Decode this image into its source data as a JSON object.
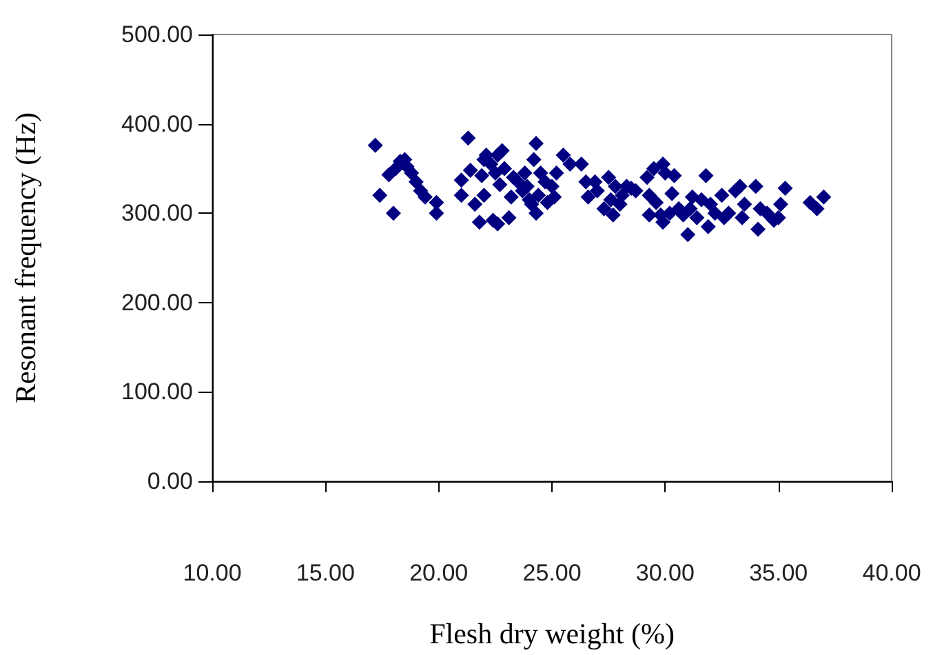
{
  "chart_data": {
    "type": "scatter",
    "xlabel": "Flesh dry weight (%)",
    "ylabel": "Resonant frequency (Hz)",
    "xlim": [
      10,
      40
    ],
    "xticks": [
      {
        "value": 10,
        "label": "10.00"
      },
      {
        "value": 15,
        "label": "15.00"
      },
      {
        "value": 20,
        "label": "20.00"
      },
      {
        "value": 25,
        "label": "25.00"
      },
      {
        "value": 30,
        "label": "30.00"
      },
      {
        "value": 35,
        "label": "35.00"
      },
      {
        "value": 40,
        "label": "40.00"
      }
    ],
    "ylim": [
      0,
      500
    ],
    "yticks": [
      {
        "value": 0,
        "label": "0.00"
      },
      {
        "value": 100,
        "label": "100.00"
      },
      {
        "value": 200,
        "label": "200.00"
      },
      {
        "value": 300,
        "label": "300.00"
      },
      {
        "value": 400,
        "label": "400.00"
      },
      {
        "value": 500,
        "label": "500.00"
      }
    ],
    "grid": false,
    "marker": "diamond",
    "series": [
      {
        "color": "#000080",
        "x": [
          17.2,
          17.4,
          17.8,
          18.0,
          18.1,
          18.3,
          18.5,
          18.6,
          18.8,
          19.0,
          19.2,
          19.4,
          19.9,
          19.9,
          21.0,
          21.0,
          21.3,
          21.4,
          21.6,
          21.8,
          21.9,
          22.0,
          22.0,
          22.1,
          22.3,
          22.4,
          22.5,
          22.6,
          22.6,
          22.7,
          22.8,
          22.9,
          23.1,
          23.2,
          23.3,
          23.5,
          23.7,
          23.8,
          23.9,
          24.0,
          24.1,
          24.2,
          24.3,
          24.3,
          24.4,
          24.5,
          24.7,
          24.8,
          25.0,
          25.1,
          25.2,
          25.5,
          25.8,
          26.3,
          26.5,
          26.6,
          26.9,
          27.0,
          27.3,
          27.5,
          27.6,
          27.7,
          27.8,
          28.0,
          28.1,
          28.3,
          28.5,
          28.7,
          29.2,
          29.3,
          29.3,
          29.5,
          29.6,
          29.8,
          29.9,
          29.9,
          30.0,
          30.2,
          30.3,
          30.4,
          30.6,
          30.8,
          31.0,
          31.1,
          31.2,
          31.4,
          31.6,
          31.8,
          31.9,
          32.0,
          32.2,
          32.5,
          32.6,
          32.8,
          33.1,
          33.3,
          33.4,
          33.5,
          34.0,
          34.1,
          34.2,
          34.5,
          34.8,
          35.0,
          35.1,
          35.3,
          36.4,
          36.7,
          37.0
        ],
        "values": [
          376,
          320,
          343,
          300,
          350,
          358,
          360,
          352,
          345,
          335,
          325,
          318,
          312,
          300,
          320,
          337,
          384,
          348,
          310,
          290,
          342,
          320,
          360,
          365,
          355,
          292,
          345,
          365,
          288,
          332,
          370,
          350,
          295,
          318,
          340,
          335,
          325,
          345,
          330,
          315,
          310,
          360,
          378,
          300,
          320,
          345,
          335,
          312,
          330,
          318,
          345,
          365,
          355,
          355,
          335,
          318,
          335,
          325,
          305,
          340,
          315,
          298,
          330,
          310,
          320,
          330,
          328,
          325,
          340,
          298,
          320,
          350,
          312,
          298,
          290,
          355,
          345,
          300,
          322,
          342,
          305,
          298,
          276,
          305,
          318,
          295,
          315,
          342,
          285,
          310,
          300,
          320,
          295,
          300,
          325,
          330,
          295,
          310,
          330,
          282,
          305,
          300,
          292,
          295,
          310,
          328,
          312,
          305,
          318
        ]
      }
    ]
  }
}
